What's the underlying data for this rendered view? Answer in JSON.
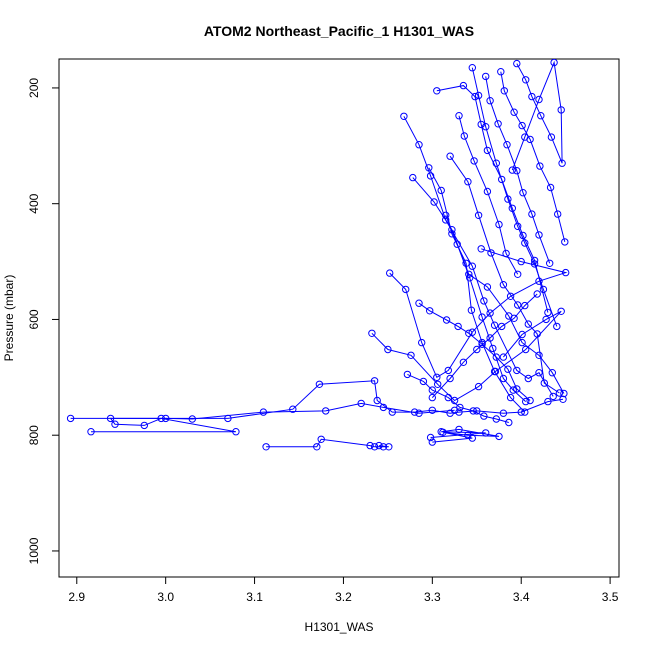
{
  "chart_data": {
    "type": "line",
    "title": "ATOM2 Northeast_Pacific_1 H1301_WAS",
    "xlabel": "H1301_WAS",
    "ylabel": "Pressure (mbar)",
    "xlim": [
      2.88,
      3.51
    ],
    "ylim": [
      1045,
      150
    ],
    "y_reversed": true,
    "x_ticks": [
      2.9,
      3.0,
      3.1,
      3.2,
      3.3,
      3.4,
      3.5
    ],
    "x_tick_labels": [
      "2.9",
      "3.0",
      "3.1",
      "3.2",
      "3.3",
      "3.4",
      "3.5"
    ],
    "y_ticks": [
      200,
      400,
      600,
      800,
      1000
    ],
    "y_tick_labels": [
      "200",
      "400",
      "600",
      "800",
      "1000"
    ],
    "color": "#0000ff",
    "marker": "open-circle",
    "series": [
      {
        "x": [
          2.893,
          3.07,
          3.143,
          3.173,
          3.235,
          3.238,
          3.255,
          3.28,
          3.3,
          3.32,
          3.33,
          3.35,
          3.38,
          3.4,
          3.43,
          3.447
        ],
        "y": [
          771,
          771,
          755,
          712,
          706,
          740,
          760,
          760,
          757,
          762,
          760,
          758,
          762,
          760,
          742,
          738
        ]
      },
      {
        "x": [
          2.916,
          3.079,
          2.995,
          2.976,
          2.943,
          2.938,
          3.0,
          3.03,
          3.11,
          3.18,
          3.22,
          3.245,
          3.285,
          3.325
        ],
        "y": [
          794,
          794,
          771,
          783,
          781,
          771,
          771,
          772,
          760,
          758,
          745,
          752,
          762,
          757
        ]
      },
      {
        "x": [
          3.113,
          3.17,
          3.175,
          3.23,
          3.235,
          3.245,
          3.251,
          3.24
        ],
        "y": [
          820,
          820,
          807,
          818,
          820,
          820,
          820,
          818
        ]
      },
      {
        "x": [
          3.3,
          3.345,
          3.312,
          3.34,
          3.375,
          3.33,
          3.31,
          3.36,
          3.298
        ],
        "y": [
          812,
          805,
          795,
          800,
          802,
          790,
          794,
          796,
          804
        ]
      },
      {
        "x": [
          3.252,
          3.27,
          3.288,
          3.305,
          3.318,
          3.345,
          3.365,
          3.388,
          3.42,
          3.45,
          3.4,
          3.355
        ],
        "y": [
          520,
          548,
          640,
          700,
          688,
          622,
          589,
          560,
          534,
          519,
          500,
          478
        ]
      },
      {
        "x": [
          3.232,
          3.25,
          3.276,
          3.306,
          3.325,
          3.352,
          3.371,
          3.405,
          3.445,
          3.428,
          3.401,
          3.38
        ],
        "y": [
          624,
          652,
          662,
          712,
          740,
          716,
          690,
          652,
          586,
          600,
          626,
          665
        ]
      },
      {
        "x": [
          3.268,
          3.285,
          3.298,
          3.315,
          3.345,
          3.358,
          3.37,
          3.395,
          3.408,
          3.42,
          3.436
        ],
        "y": [
          249,
          298,
          352,
          428,
          508,
          568,
          610,
          688,
          702,
          692,
          733
        ]
      },
      {
        "x": [
          3.278,
          3.302,
          3.322,
          3.341,
          3.362,
          3.386,
          3.401,
          3.42,
          3.435,
          3.448
        ],
        "y": [
          355,
          397,
          445,
          522,
          544,
          594,
          640,
          662,
          692,
          728
        ]
      },
      {
        "x": [
          3.305,
          3.335,
          3.348,
          3.355,
          3.362,
          3.378,
          3.39,
          3.402,
          3.415,
          3.43
        ],
        "y": [
          205,
          196,
          215,
          263,
          308,
          358,
          408,
          455,
          498,
          588
        ]
      },
      {
        "x": [
          3.32,
          3.34,
          3.352,
          3.366,
          3.38,
          3.396,
          3.408,
          3.418,
          3.426,
          3.443
        ],
        "y": [
          318,
          362,
          420,
          485,
          540,
          575,
          608,
          625,
          710,
          727
        ]
      },
      {
        "x": [
          3.345,
          3.352,
          3.36,
          3.372,
          3.385,
          3.396,
          3.404,
          3.415,
          3.425,
          3.44
        ],
        "y": [
          165,
          213,
          267,
          330,
          392,
          439,
          468,
          504,
          548,
          612
        ]
      },
      {
        "x": [
          3.36,
          3.365,
          3.374,
          3.384,
          3.395,
          3.402,
          3.412,
          3.42,
          3.432
        ],
        "y": [
          180,
          222,
          262,
          298,
          343,
          381,
          418,
          454,
          503
        ]
      },
      {
        "x": [
          3.377,
          3.381,
          3.392,
          3.401,
          3.41,
          3.421,
          3.433,
          3.441,
          3.449
        ],
        "y": [
          172,
          205,
          242,
          265,
          289,
          335,
          372,
          418,
          466
        ]
      },
      {
        "x": [
          3.395,
          3.405,
          3.412,
          3.422,
          3.434,
          3.446,
          3.445,
          3.437,
          3.42,
          3.404,
          3.39
        ],
        "y": [
          158,
          186,
          215,
          248,
          285,
          330,
          238,
          156,
          220,
          285,
          342
        ]
      },
      {
        "x": [
          3.296,
          3.31,
          3.322,
          3.338,
          3.344,
          3.356,
          3.37,
          3.388,
          3.404
        ],
        "y": [
          338,
          377,
          452,
          503,
          584,
          640,
          690,
          735,
          760
        ]
      },
      {
        "x": [
          3.285,
          3.297,
          3.316,
          3.329,
          3.341,
          3.356,
          3.372,
          3.385,
          3.395,
          3.41
        ],
        "y": [
          572,
          585,
          601,
          612,
          624,
          643,
          665,
          686,
          720,
          740
        ]
      },
      {
        "x": [
          3.272,
          3.29,
          3.3,
          3.318,
          3.331,
          3.346,
          3.358,
          3.372,
          3.386
        ],
        "y": [
          695,
          707,
          722,
          735,
          752,
          758,
          767,
          772,
          778
        ]
      },
      {
        "x": [
          3.3,
          3.32,
          3.335,
          3.35,
          3.365,
          3.378,
          3.392,
          3.404,
          3.418
        ],
        "y": [
          735,
          702,
          674,
          652,
          632,
          612,
          598,
          576,
          556
        ]
      },
      {
        "x": [
          3.315,
          3.328,
          3.342,
          3.356,
          3.368,
          3.38,
          3.391,
          3.405
        ],
        "y": [
          420,
          470,
          528,
          596,
          650,
          702,
          722,
          742
        ]
      },
      {
        "x": [
          3.33,
          3.336,
          3.347,
          3.362,
          3.375,
          3.383,
          3.396
        ],
        "y": [
          248,
          283,
          326,
          379,
          436,
          486,
          522
        ]
      }
    ]
  }
}
